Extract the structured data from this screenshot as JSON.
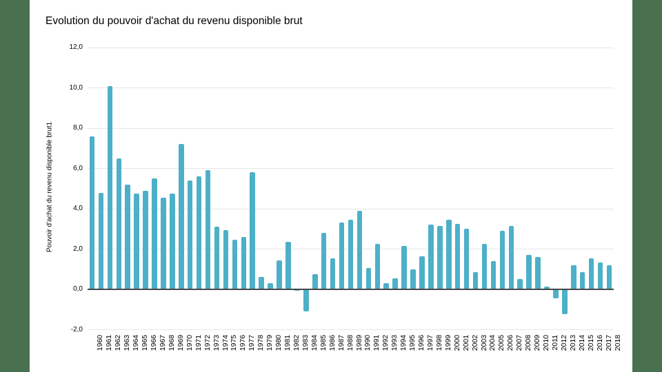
{
  "frame": {
    "side_strip_color": "#497150",
    "background_color": "#ffffff"
  },
  "chart": {
    "title": "Evolution du pouvoir d'achat du revenu disponible brut",
    "y_axis_title": "Pouvoir d'achat du revenu disponible brut1",
    "bar_color": "#4db0c8",
    "grid_color": "#e6e6e6",
    "axis_line_color": "#464646",
    "text_color": "#000000",
    "y_tick_labels": [
      "12,0",
      "10,0",
      "8,0",
      "6,0",
      "4,0",
      "2,0",
      "0,0",
      "-2,0"
    ]
  },
  "chart_data": {
    "type": "bar",
    "title": "Evolution du pouvoir d'achat du revenu disponible brut",
    "xlabel": "",
    "ylabel": "Pouvoir d'achat du revenu disponible brut1",
    "ylim": [
      -2,
      12
    ],
    "y_tick_step": 2,
    "grid": true,
    "legend": false,
    "categories": [
      "1960",
      "1961",
      "1962",
      "1963",
      "1964",
      "1965",
      "1966",
      "1967",
      "1968",
      "1969",
      "1970",
      "1971",
      "1972",
      "1973",
      "1974",
      "1975",
      "1976",
      "1977",
      "1978",
      "1979",
      "1980",
      "1981",
      "1982",
      "1983",
      "1984",
      "1985",
      "1986",
      "1987",
      "1988",
      "1989",
      "1990",
      "1991",
      "1992",
      "1993",
      "1994",
      "1995",
      "1996",
      "1997",
      "1998",
      "1999",
      "2000",
      "2001",
      "2002",
      "2003",
      "2004",
      "2005",
      "2006",
      "2007",
      "2008",
      "2009",
      "2010",
      "2011",
      "2012",
      "2013",
      "2014",
      "2015",
      "2016",
      "2017",
      "2018"
    ],
    "values": [
      7.6,
      4.8,
      10.1,
      6.5,
      5.2,
      4.75,
      4.9,
      5.5,
      4.55,
      4.75,
      7.2,
      5.4,
      5.6,
      5.9,
      3.1,
      2.95,
      2.45,
      2.6,
      5.8,
      0.6,
      0.3,
      1.45,
      2.35,
      -0.05,
      -1.05,
      0.75,
      2.8,
      1.55,
      3.3,
      3.45,
      3.9,
      1.05,
      2.25,
      0.3,
      0.55,
      2.15,
      1.0,
      1.65,
      3.2,
      3.15,
      3.45,
      3.25,
      3.0,
      0.85,
      2.25,
      1.4,
      2.9,
      3.15,
      0.5,
      1.7,
      1.6,
      0.15,
      -0.4,
      -1.2,
      1.2,
      0.85,
      1.55,
      1.35,
      1.2
    ]
  }
}
